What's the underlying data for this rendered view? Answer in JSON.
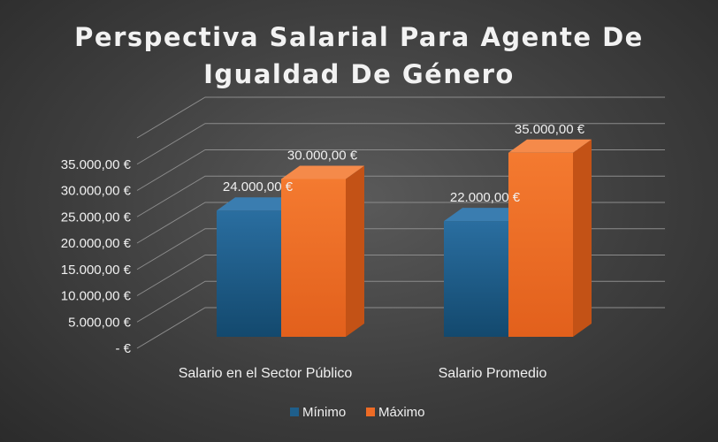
{
  "chart_data": {
    "type": "bar",
    "title_lines": [
      "Perspectiva Salarial Para Agente De",
      "Igualdad De Género"
    ],
    "categories": [
      "Salario en el Sector Público",
      "Salario Promedio"
    ],
    "series": [
      {
        "name": "Mínimo",
        "values": [
          24000,
          22000
        ],
        "color": "#1f5f8b"
      },
      {
        "name": "Máximo",
        "values": [
          30000,
          35000
        ],
        "color": "#ed6b25"
      }
    ],
    "data_labels": [
      [
        "24.000,00 €",
        "22.000,00 €"
      ],
      [
        "30.000,00 €",
        "35.000,00 €"
      ]
    ],
    "y_ticks": [
      0,
      5000,
      10000,
      15000,
      20000,
      25000,
      30000,
      35000
    ],
    "y_tick_labels": [
      " -  €",
      "5.000,00 €",
      "10.000,00 €",
      "15.000,00 €",
      "20.000,00 €",
      "25.000,00 €",
      "30.000,00 €",
      "35.000,00 €"
    ],
    "ylim": [
      0,
      40000
    ],
    "grid": true,
    "style": "3d-column",
    "legend_position": "bottom"
  }
}
